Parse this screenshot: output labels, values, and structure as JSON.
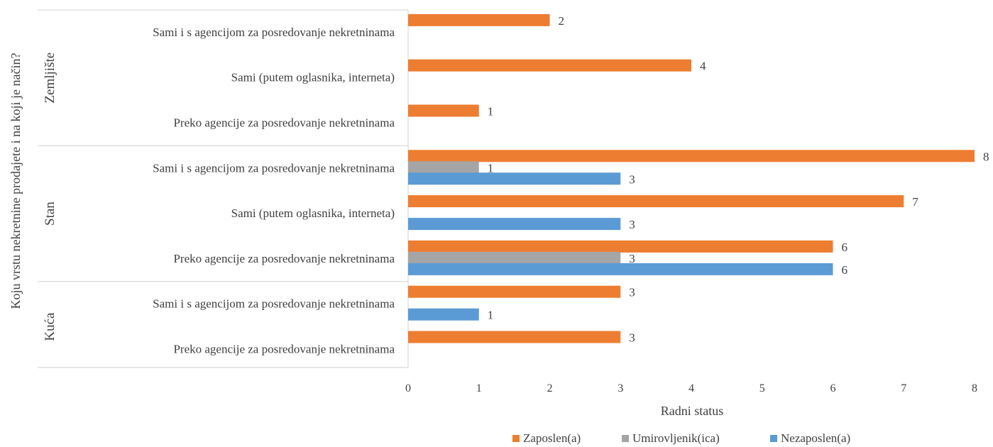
{
  "chart_data": {
    "type": "bar",
    "orientation": "horizontal",
    "ylabel": "Koju vrstu nekretnine prodajete i na koji je način?",
    "xlabel": "Radni status",
    "xlim": [
      0,
      8
    ],
    "xticks": [
      "0",
      "1",
      "2",
      "3",
      "4",
      "5",
      "6",
      "7",
      "8"
    ],
    "grid": false,
    "legend_position": "bottom",
    "groups": [
      {
        "name": "Zemljište",
        "categories": [
          {
            "label": "Sami i s agencijom za posredovanje nekretninama",
            "values": {
              "Zaposlen(a)": 2,
              "Umirovljenik(ica)": null,
              "Nezaposlen(a)": null
            }
          },
          {
            "label": "Sami (putem oglasnika, interneta)",
            "values": {
              "Zaposlen(a)": 4,
              "Umirovljenik(ica)": null,
              "Nezaposlen(a)": null
            }
          },
          {
            "label": "Preko agencije za posredovanje nekretninama",
            "values": {
              "Zaposlen(a)": 1,
              "Umirovljenik(ica)": null,
              "Nezaposlen(a)": null
            }
          }
        ]
      },
      {
        "name": "Stan",
        "categories": [
          {
            "label": "Sami i s agencijom za posredovanje nekretninama",
            "values": {
              "Zaposlen(a)": 8,
              "Umirovljenik(ica)": 1,
              "Nezaposlen(a)": 3
            }
          },
          {
            "label": "Sami (putem oglasnika, interneta)",
            "values": {
              "Zaposlen(a)": 7,
              "Umirovljenik(ica)": null,
              "Nezaposlen(a)": 3
            }
          },
          {
            "label": "Preko agencije za posredovanje nekretninama",
            "values": {
              "Zaposlen(a)": 6,
              "Umirovljenik(ica)": 3,
              "Nezaposlen(a)": 6
            }
          }
        ]
      },
      {
        "name": "Kuća",
        "categories": [
          {
            "label": "Sami i s agencijom za posredovanje nekretninama",
            "values": {
              "Zaposlen(a)": 3,
              "Umirovljenik(ica)": null,
              "Nezaposlen(a)": 1
            }
          },
          {
            "label": "Preko agencije za posredovanje nekretninama",
            "values": {
              "Zaposlen(a)": 3,
              "Umirovljenik(ica)": null,
              "Nezaposlen(a)": null
            }
          }
        ]
      }
    ],
    "series": [
      {
        "name": "Zaposlen(a)",
        "color": "#ED7D31"
      },
      {
        "name": "Umirovljenik(ica)",
        "color": "#A5A5A5"
      },
      {
        "name": "Nezaposlen(a)",
        "color": "#5B9BD5"
      }
    ]
  }
}
